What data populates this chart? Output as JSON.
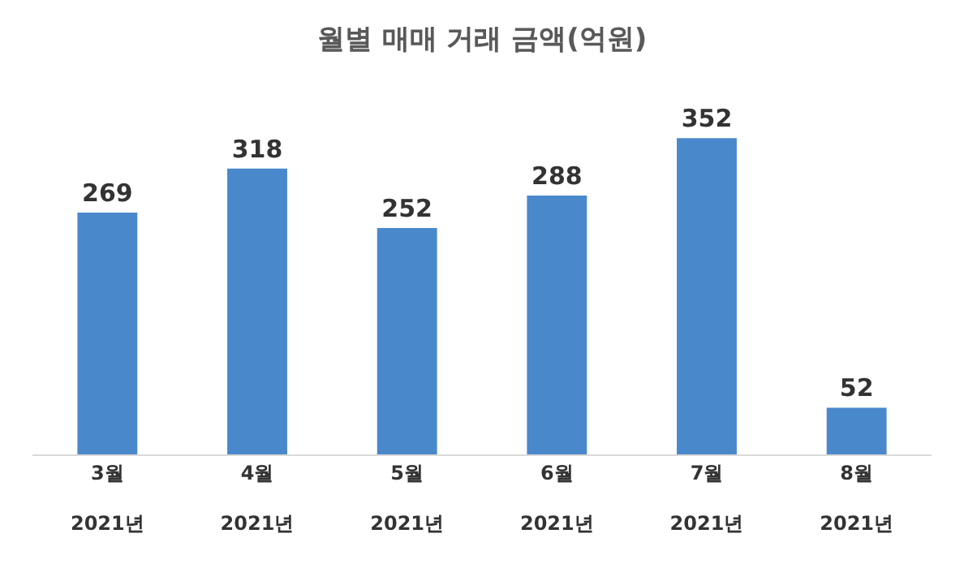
{
  "chart_data": {
    "type": "bar",
    "title": "월별 매매 거래 금액(억원)",
    "categories": [
      "3월\n2021년",
      "4월\n2021년",
      "5월\n2021년",
      "6월\n2021년",
      "7월\n2021년",
      "8월\n2021년"
    ],
    "values": [
      269,
      318,
      252,
      288,
      352,
      52
    ],
    "color": "#4a88cc",
    "data_labels": true,
    "legend": false
  }
}
